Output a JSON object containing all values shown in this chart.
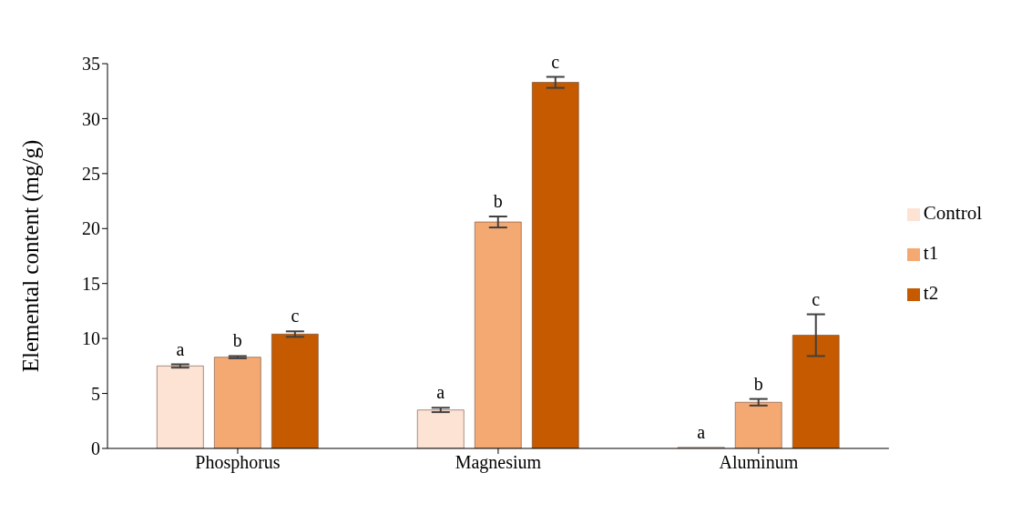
{
  "chart_data": {
    "type": "bar",
    "ylabel": "Elemental content (mg/g)",
    "categories": [
      "Phosphorus",
      "Magnesium",
      "Aluminum"
    ],
    "series": [
      {
        "name": "Control",
        "color": "#fde3d3",
        "values": [
          7.5,
          3.5,
          0.1
        ],
        "errors": [
          0.15,
          0.2,
          0
        ]
      },
      {
        "name": "t1",
        "color": "#f4a972",
        "values": [
          8.3,
          20.6,
          4.2
        ],
        "errors": [
          0.1,
          0.5,
          0.3
        ]
      },
      {
        "name": "t2",
        "color": "#c55a00",
        "values": [
          10.4,
          33.3,
          10.3
        ],
        "errors": [
          0.25,
          0.5,
          1.9
        ]
      }
    ],
    "ylim": [
      0,
      35
    ],
    "yticks": [
      0,
      5,
      10,
      15,
      20,
      25,
      30,
      35
    ],
    "grid": false,
    "legend": "right",
    "annotations": [
      "a",
      "b",
      "c",
      "a",
      "b",
      "c",
      "a",
      "b",
      "c"
    ]
  }
}
